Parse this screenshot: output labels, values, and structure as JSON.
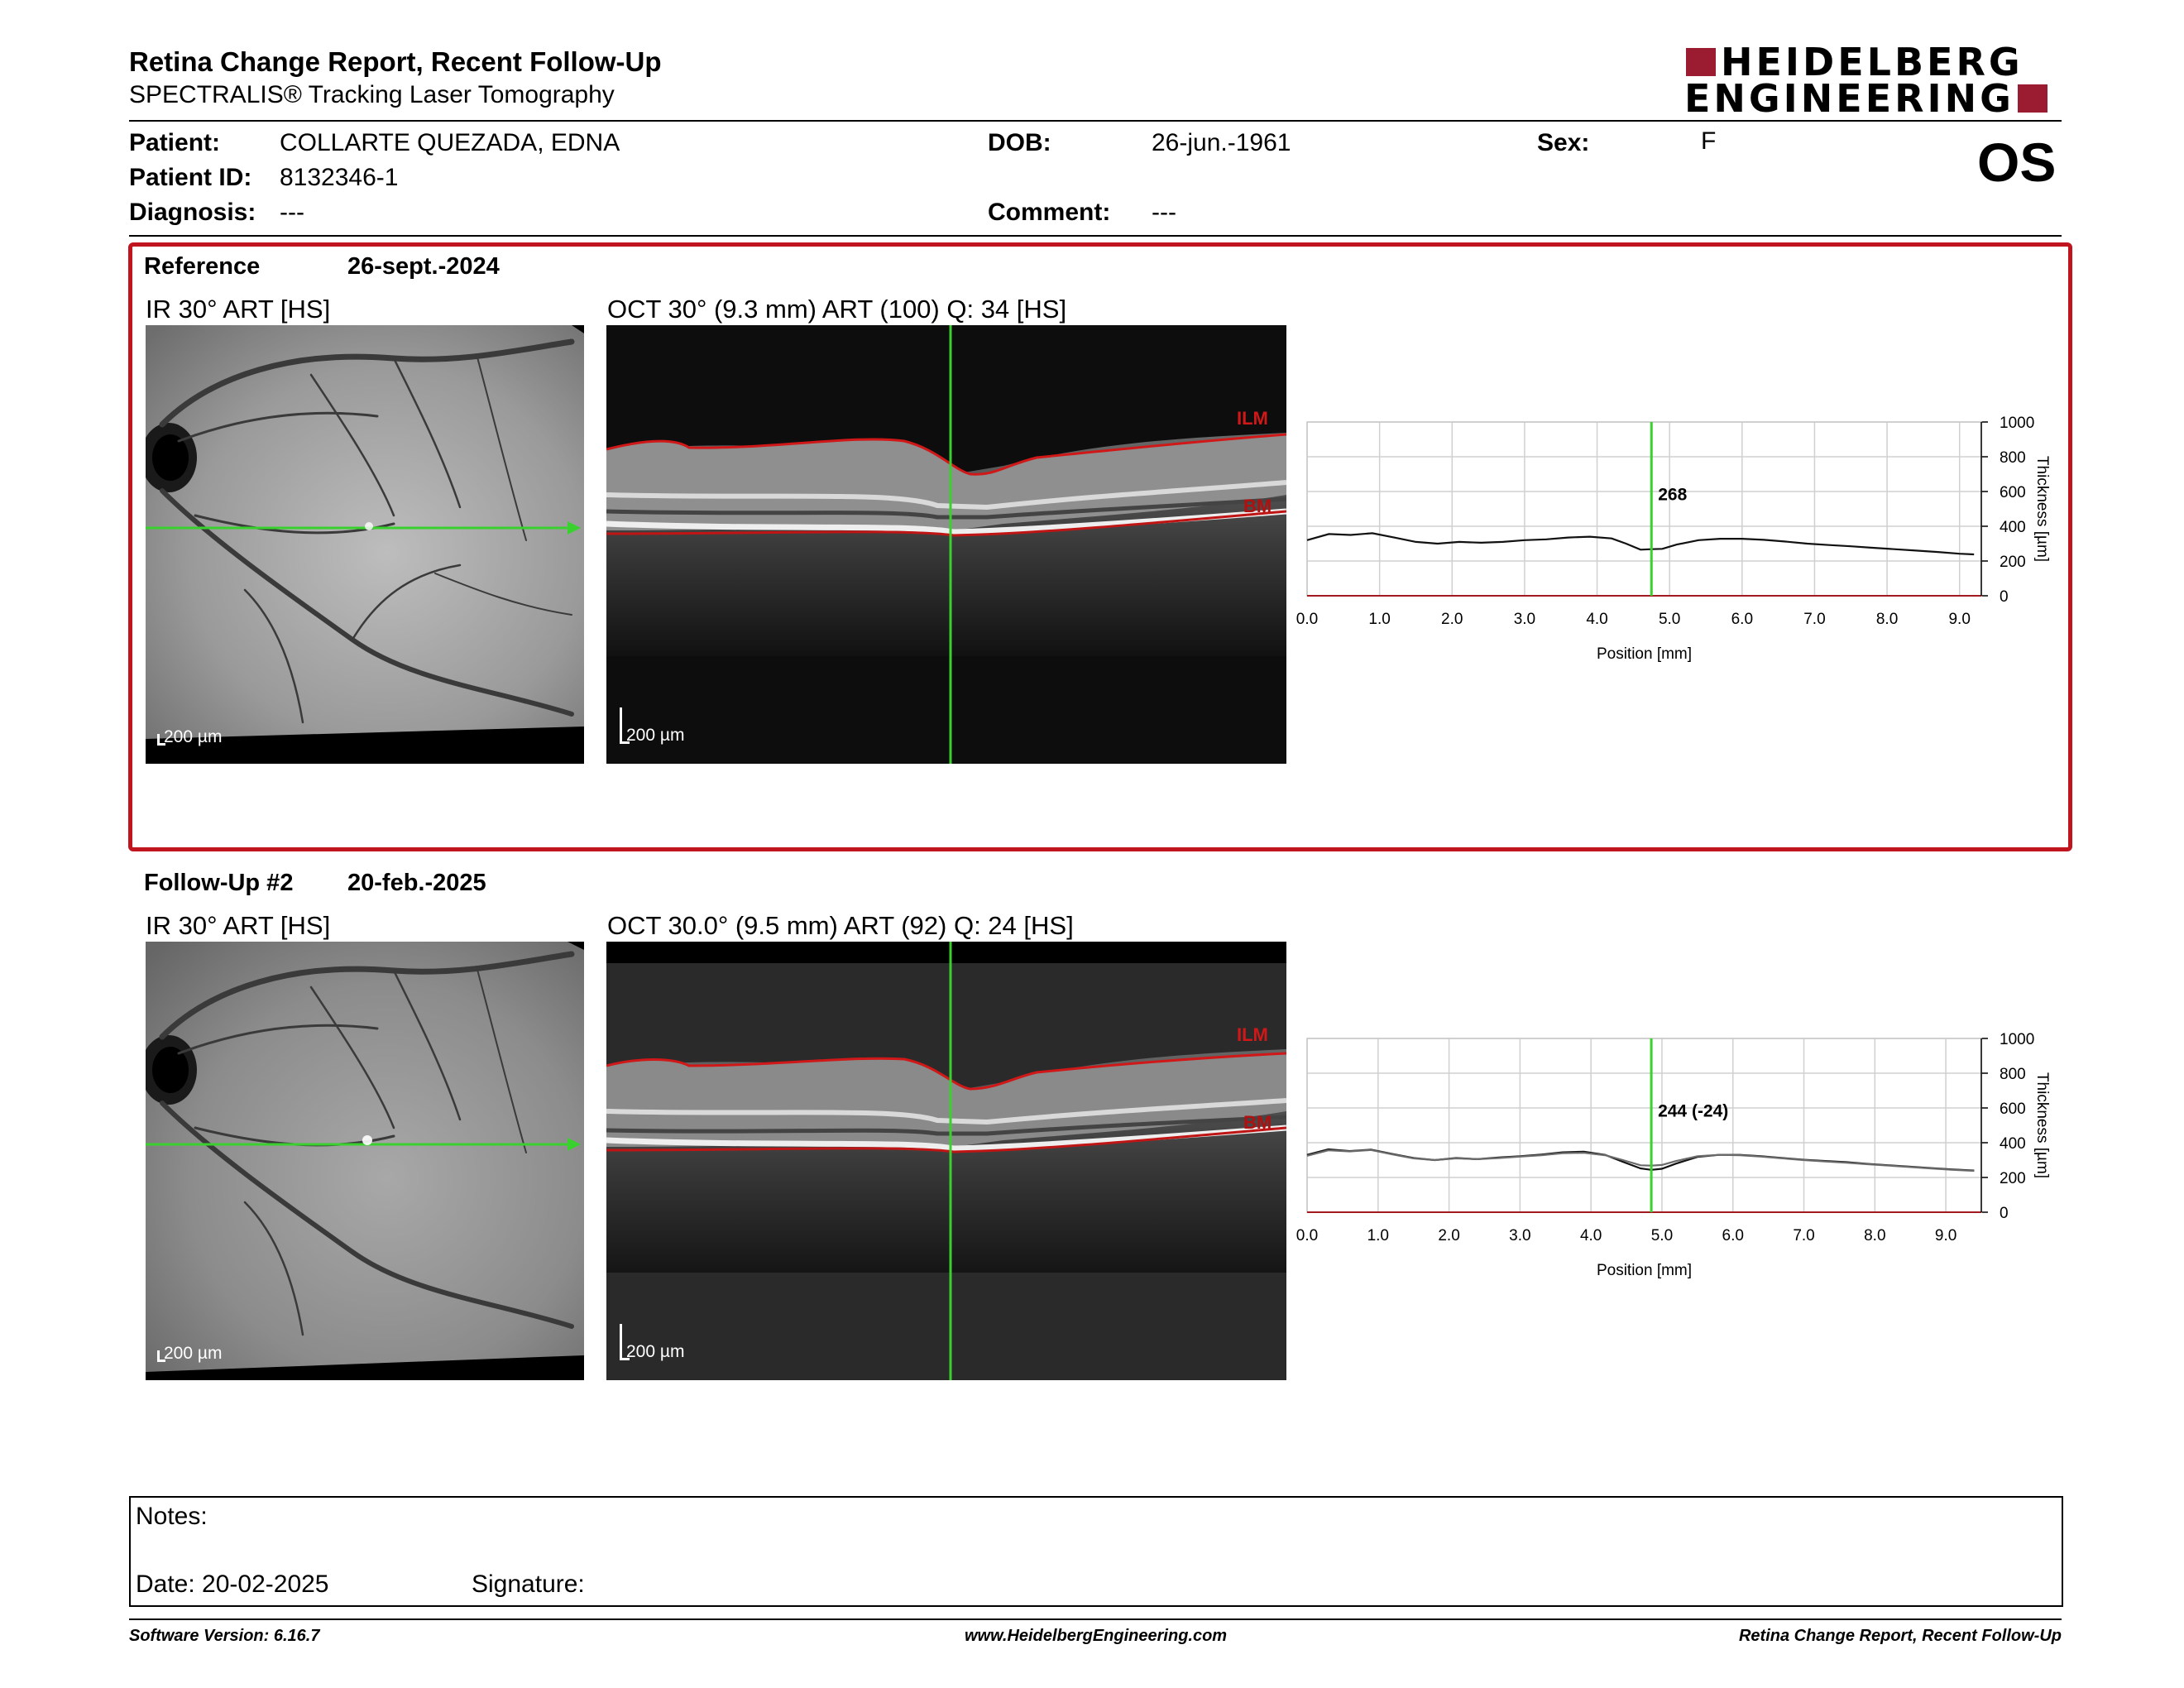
{
  "header": {
    "title": "Retina Change Report, Recent Follow-Up",
    "subtitle": "SPECTRALIS® Tracking Laser Tomography",
    "logo_line1": "HEIDELBERG",
    "logo_line2": "ENGINEERING",
    "eye": "OS"
  },
  "patient": {
    "patient_label": "Patient:",
    "patient_name": "COLLARTE QUEZADA, EDNA",
    "id_label": "Patient ID:",
    "id_value": "8132346-1",
    "diagnosis_label": "Diagnosis:",
    "diagnosis_value": "---",
    "dob_label": "DOB:",
    "dob_value": "26-jun.-1961",
    "comment_label": "Comment:",
    "comment_value": "---",
    "sex_label": "Sex:",
    "sex_value": "F"
  },
  "reference": {
    "label": "Reference",
    "date": "26-sept.-2024",
    "ir_label": "IR 30° ART [HS]",
    "oct_label": "OCT 30° (9.3 mm) ART (100) Q: 34 [HS]",
    "ir_scale": "200 µm",
    "oct_scale": "200 µm",
    "ilm": "ILM",
    "bm": "BM"
  },
  "followup": {
    "label": "Follow-Up #2",
    "date": "20-feb.-2025",
    "ir_label": "IR 30° ART [HS]",
    "oct_label": "OCT 30.0° (9.5 mm) ART (92) Q: 24 [HS]",
    "ir_scale": "200 µm",
    "oct_scale": "200 µm",
    "ilm": "ILM",
    "bm": "BM"
  },
  "chart_data": [
    {
      "type": "line",
      "xlabel": "Position [mm]",
      "ylabel": "Thickness [µm]",
      "xlim": [
        0,
        9.3
      ],
      "ylim": [
        0,
        1000
      ],
      "xticks": [
        "0.0",
        "1.0",
        "2.0",
        "3.0",
        "4.0",
        "5.0",
        "6.0",
        "7.0",
        "8.0",
        "9.0"
      ],
      "yticks": [
        "0",
        "200",
        "400",
        "600",
        "800",
        "1000"
      ],
      "cursor_x": 4.75,
      "cursor_label": "268",
      "series": [
        {
          "x": [
            0,
            0.3,
            0.6,
            0.9,
            1.2,
            1.5,
            1.8,
            2.1,
            2.4,
            2.7,
            3.0,
            3.3,
            3.6,
            3.9,
            4.2,
            4.4,
            4.6,
            4.75,
            4.9,
            5.1,
            5.4,
            5.7,
            6.0,
            6.3,
            6.6,
            6.9,
            7.2,
            7.5,
            7.8,
            8.1,
            8.4,
            8.7,
            9.0,
            9.2
          ],
          "y": [
            320,
            355,
            350,
            360,
            335,
            310,
            300,
            310,
            305,
            310,
            320,
            325,
            335,
            340,
            330,
            300,
            265,
            268,
            270,
            295,
            320,
            328,
            328,
            322,
            312,
            300,
            292,
            285,
            276,
            268,
            260,
            252,
            242,
            238
          ]
        }
      ]
    },
    {
      "type": "line",
      "xlabel": "Position [mm]",
      "ylabel": "Thickness [µm]",
      "xlim": [
        0,
        9.5
      ],
      "ylim": [
        0,
        1000
      ],
      "xticks": [
        "0.0",
        "1.0",
        "2.0",
        "3.0",
        "4.0",
        "5.0",
        "6.0",
        "7.0",
        "8.0",
        "9.0"
      ],
      "yticks": [
        "0",
        "200",
        "400",
        "600",
        "800",
        "1000"
      ],
      "cursor_x": 4.85,
      "cursor_label": "244 (-24)",
      "series": [
        {
          "x": [
            0,
            0.3,
            0.6,
            0.9,
            1.2,
            1.5,
            1.8,
            2.1,
            2.4,
            2.7,
            3.0,
            3.3,
            3.6,
            3.9,
            4.2,
            4.45,
            4.7,
            4.85,
            5.0,
            5.2,
            5.5,
            5.8,
            6.1,
            6.4,
            6.7,
            7.0,
            7.3,
            7.6,
            7.9,
            8.2,
            8.5,
            8.8,
            9.1,
            9.4
          ],
          "y": [
            330,
            362,
            352,
            360,
            335,
            312,
            300,
            312,
            305,
            315,
            322,
            332,
            345,
            348,
            330,
            290,
            252,
            244,
            250,
            280,
            318,
            330,
            330,
            322,
            312,
            302,
            295,
            288,
            278,
            270,
            262,
            254,
            246,
            240
          ]
        },
        {
          "x": [
            0,
            0.3,
            0.6,
            0.9,
            1.2,
            1.5,
            1.8,
            2.1,
            2.4,
            2.7,
            3.0,
            3.3,
            3.6,
            3.9,
            4.2,
            4.45,
            4.7,
            4.85,
            5.0,
            5.2,
            5.5,
            5.8,
            6.1,
            6.4,
            6.7,
            7.0,
            7.3,
            7.6,
            7.9,
            8.2,
            8.5,
            8.8,
            9.1,
            9.4
          ],
          "y": [
            325,
            356,
            350,
            358,
            333,
            310,
            300,
            310,
            305,
            312,
            320,
            328,
            340,
            342,
            328,
            300,
            270,
            268,
            272,
            295,
            322,
            330,
            328,
            320,
            310,
            300,
            292,
            285,
            276,
            268,
            260,
            252,
            244,
            238
          ]
        }
      ]
    }
  ],
  "notes": {
    "notes_label": "Notes:",
    "date_label": "Date: 20-02-2025",
    "signature_label": "Signature:"
  },
  "footer": {
    "left": "Software Version: 6.16.7",
    "center": "www.HeidelbergEngineering.com",
    "right": "Retina Change Report, Recent Follow-Up"
  }
}
